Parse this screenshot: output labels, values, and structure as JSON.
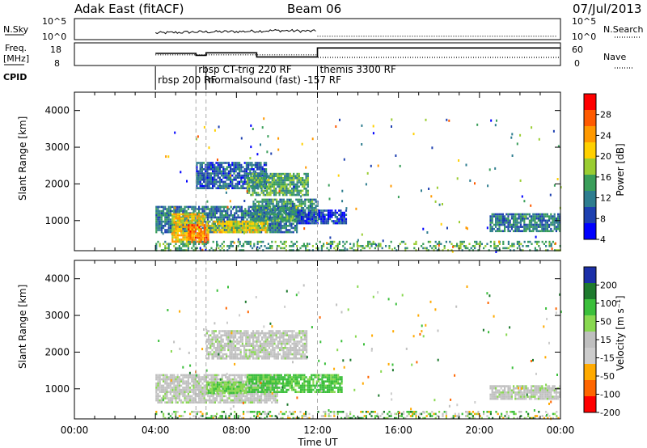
{
  "header": {
    "title": "Adak East (fitACF)",
    "beam": "Beam 06",
    "date": "07/Jul/2013"
  },
  "noise_panel": {
    "left_label": "N.Sky",
    "left_ticks": [
      "10^5",
      "10^0"
    ],
    "right_ticks": [
      "10^5",
      "10^0"
    ],
    "right_label": "N.Search"
  },
  "freq_panel": {
    "left_label_line1": "Freq.",
    "left_label_line2": "[MHz]",
    "left_ticks": [
      "18",
      "8"
    ],
    "right_ticks": [
      "60",
      "0"
    ],
    "right_label": "Nave"
  },
  "cpid": {
    "label": "CPID",
    "programs": [
      {
        "name": "rbsp 200 RF",
        "start_hour": 4.0
      },
      {
        "name": "rbsp CT-trig 220 RF",
        "start_hour": 6.0
      },
      {
        "name": "normalsound (fast) -157 RF",
        "start_hour": 6.5
      },
      {
        "name": "themis 3300 RF",
        "start_hour": 12.0
      }
    ]
  },
  "colors": {
    "power_scale": [
      "#0000ff",
      "#1d40b0",
      "#2e7d8f",
      "#3a9e5a",
      "#9acd32",
      "#ffd000",
      "#ff9900",
      "#ff5a00",
      "#ff0000"
    ],
    "velocity_scale": [
      "#ff0000",
      "#ff6600",
      "#ffaa00",
      "#cccccc",
      "#bfbfbf",
      "#88d850",
      "#3bbf3b",
      "#1e7a2e",
      "#1b2fa8"
    ],
    "ground_scatter": "#c0c0c0"
  },
  "chart_data": [
    {
      "type": "line",
      "panel": "noise",
      "x_domain_hours": [
        0,
        24
      ],
      "note_series": [
        {
          "name": "N.Sky",
          "style": "solid",
          "x": [
            4,
            6,
            8,
            10,
            12
          ],
          "y_log": [
            1.4,
            1.7,
            1.8,
            2.1,
            1.9
          ]
        },
        {
          "name": "N.Search",
          "style": "dotted",
          "x": [
            12,
            16,
            20,
            24
          ],
          "y_log": [
            0.5,
            0.5,
            0.5,
            0.5
          ]
        }
      ]
    },
    {
      "type": "line",
      "panel": "frequency",
      "x_domain_hours": [
        0,
        24
      ],
      "series": [
        {
          "name": "Freq.",
          "x": [
            4.0,
            6.0,
            6.0,
            6.5,
            6.5,
            9.0,
            9.0,
            10.8,
            10.8,
            12.0,
            12.0,
            24.0
          ],
          "y": [
            13.6,
            13.6,
            12.2,
            12.2,
            14.0,
            14.0,
            11.0,
            11.0,
            11.0,
            11.0,
            17.5,
            17.5
          ]
        },
        {
          "name": "Nave",
          "x": [
            4.0,
            12.0,
            12.0,
            24.0
          ],
          "y": [
            28,
            28,
            20,
            20
          ]
        }
      ]
    },
    {
      "type": "heatmap",
      "panel": "power",
      "title": "",
      "xlabel": "",
      "ylabel": "Slant Range [km]",
      "colorbar_label": "Power [dB]",
      "colorbar_ticks": [
        "28",
        "24",
        "20",
        "16",
        "12",
        "8",
        "4"
      ],
      "x_range_hours": [
        0,
        24
      ],
      "y_range_km": [
        180,
        4500
      ],
      "y_ticks": [
        "1000",
        "2000",
        "3000",
        "4000"
      ],
      "regions": [
        {
          "hour_start": 4.0,
          "hour_end": 11.0,
          "range_start_km": 700,
          "range_end_km": 1400,
          "level": 10
        },
        {
          "hour_start": 4.8,
          "hour_end": 6.4,
          "range_start_km": 400,
          "range_end_km": 1200,
          "level": 22
        },
        {
          "hour_start": 5.6,
          "hour_end": 6.6,
          "range_start_km": 400,
          "range_end_km": 900,
          "level": 28
        },
        {
          "hour_start": 6.5,
          "hour_end": 9.5,
          "range_start_km": 700,
          "range_end_km": 1000,
          "level": 20
        },
        {
          "hour_start": 8.8,
          "hour_end": 12.0,
          "range_start_km": 1000,
          "range_end_km": 1600,
          "level": 12
        },
        {
          "hour_start": 11.0,
          "hour_end": 13.4,
          "range_start_km": 900,
          "range_end_km": 1300,
          "level": 6
        },
        {
          "hour_start": 6.0,
          "hour_end": 9.5,
          "range_start_km": 1900,
          "range_end_km": 2600,
          "level": 8
        },
        {
          "hour_start": 8.5,
          "hour_end": 11.5,
          "range_start_km": 1700,
          "range_end_km": 2300,
          "level": 14
        },
        {
          "hour_start": 20.5,
          "hour_end": 24.0,
          "range_start_km": 700,
          "range_end_km": 1200,
          "level": 10
        },
        {
          "hour_start": 4.0,
          "hour_end": 24.0,
          "range_start_km": 180,
          "range_end_km": 450,
          "level": 14
        }
      ]
    },
    {
      "type": "heatmap",
      "panel": "velocity",
      "title": "",
      "xlabel": "Time UT",
      "ylabel": "Slant Range [km]",
      "colorbar_label": "Velocity [m s⁻¹]",
      "colorbar_ticks": [
        "200",
        "100",
        "50",
        "15",
        "-15",
        "-50",
        "-100",
        "-200"
      ],
      "x_range_hours": [
        0,
        24
      ],
      "x_ticks": [
        "00:00",
        "04:00",
        "08:00",
        "12:00",
        "16:00",
        "20:00",
        "00:00"
      ],
      "y_range_km": [
        180,
        4500
      ],
      "y_ticks": [
        "1000",
        "2000",
        "3000",
        "4000"
      ],
      "regions": [
        {
          "hour_start": 4.0,
          "hour_end": 10.0,
          "range_start_km": 600,
          "range_end_km": 1400,
          "velocity": 0
        },
        {
          "hour_start": 6.5,
          "hour_end": 11.5,
          "range_start_km": 1800,
          "range_end_km": 2600,
          "velocity": 0
        },
        {
          "hour_start": 8.5,
          "hour_end": 13.2,
          "range_start_km": 900,
          "range_end_km": 1400,
          "velocity": 60
        },
        {
          "hour_start": 6.5,
          "hour_end": 8.5,
          "range_start_km": 900,
          "range_end_km": 1200,
          "velocity": 40
        },
        {
          "hour_start": 20.5,
          "hour_end": 24.0,
          "range_start_km": 700,
          "range_end_km": 1100,
          "velocity": 0
        },
        {
          "hour_start": 4.0,
          "hour_end": 24.0,
          "range_start_km": 180,
          "range_end_km": 400,
          "velocity": 30
        }
      ]
    }
  ]
}
